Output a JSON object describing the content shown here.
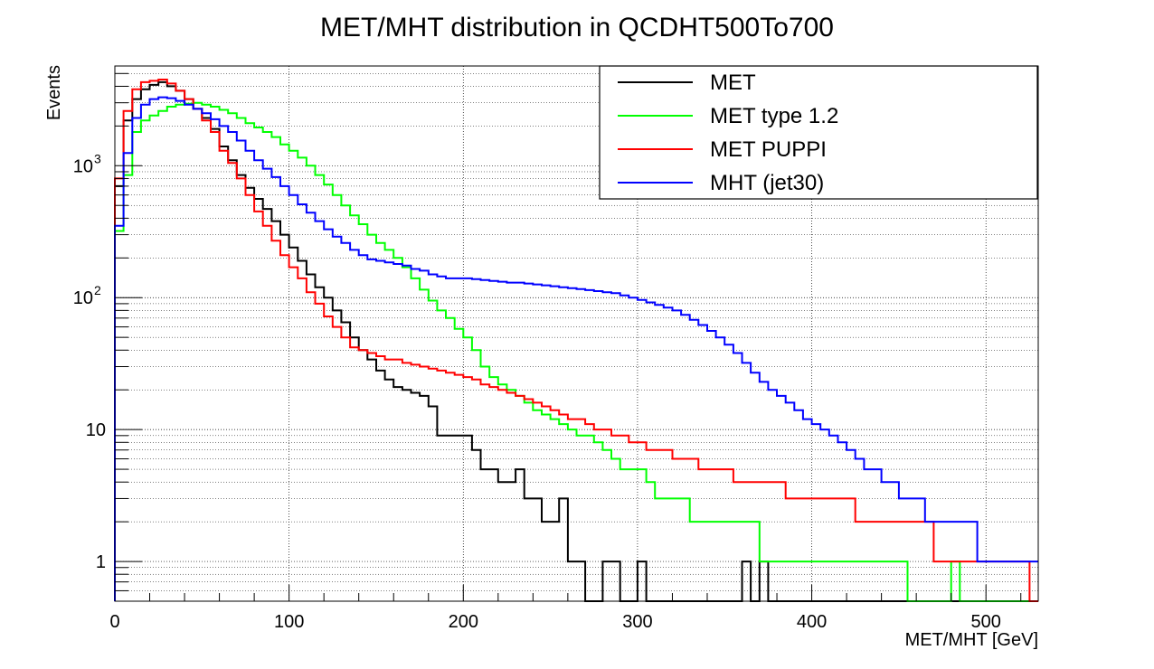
{
  "chart_data": {
    "type": "line",
    "title": "MET/MHT distribution in QCDHT500To700",
    "xlabel": "MET/MHT [GeV]",
    "ylabel": "Events",
    "x_range": [
      0,
      530
    ],
    "y_range": [
      0.5,
      5700
    ],
    "y_scale": "log",
    "grid": true,
    "legend_position": "top-right",
    "x_ticks": [
      {
        "value": 0,
        "label": "0"
      },
      {
        "value": 100,
        "label": "100"
      },
      {
        "value": 200,
        "label": "200"
      },
      {
        "value": 300,
        "label": "300"
      },
      {
        "value": 400,
        "label": "400"
      },
      {
        "value": 500,
        "label": "500"
      }
    ],
    "y_ticks": [
      {
        "value": 1,
        "base": "1",
        "exp": ""
      },
      {
        "value": 10,
        "base": "10",
        "exp": ""
      },
      {
        "value": 100,
        "base": "10",
        "exp": "2"
      },
      {
        "value": 1000,
        "base": "10",
        "exp": "3"
      }
    ],
    "bin_edges_start": 0,
    "bin_width": 5,
    "series": [
      {
        "name": "MET",
        "color": "#000000",
        "values": [
          700,
          2200,
          3200,
          3800,
          4100,
          4300,
          4000,
          3700,
          3200,
          2700,
          2300,
          1900,
          1400,
          1100,
          850,
          680,
          560,
          470,
          380,
          300,
          240,
          190,
          150,
          120,
          100,
          80,
          65,
          50,
          40,
          34,
          28,
          24,
          21,
          20,
          19,
          18,
          15,
          9,
          9,
          9,
          9,
          7,
          5,
          5,
          4,
          4,
          5,
          3,
          3,
          2,
          2,
          3,
          1,
          1,
          0,
          0,
          1,
          1,
          0,
          0,
          1,
          0,
          0,
          0,
          0,
          0,
          0,
          0,
          0,
          0,
          0,
          0,
          1,
          0,
          1,
          0,
          0,
          0,
          0,
          0,
          0,
          0,
          0,
          0,
          0,
          0,
          0,
          0,
          0,
          0,
          0,
          0,
          0,
          0,
          0,
          0,
          0,
          0,
          0,
          0,
          0,
          0,
          0,
          0,
          0,
          0
        ]
      },
      {
        "name": "MET type 1.2",
        "color": "#00ff00",
        "values": [
          320,
          850,
          1800,
          2200,
          2400,
          2600,
          2800,
          2900,
          2950,
          3000,
          2900,
          2800,
          2650,
          2500,
          2300,
          2100,
          1950,
          1800,
          1650,
          1450,
          1300,
          1150,
          1000,
          850,
          720,
          600,
          500,
          420,
          360,
          300,
          260,
          230,
          200,
          170,
          140,
          115,
          95,
          80,
          70,
          58,
          50,
          40,
          30,
          25,
          22,
          20,
          18,
          16,
          14,
          13,
          12,
          11,
          10,
          9,
          9,
          8,
          7,
          6,
          5,
          5,
          5,
          4,
          3,
          3,
          3,
          3,
          2,
          2,
          2,
          2,
          2,
          2,
          2,
          2,
          1,
          1,
          1,
          1,
          1,
          1,
          1,
          1,
          1,
          1,
          1,
          1,
          1,
          1,
          1,
          1,
          1,
          0,
          0,
          0,
          0,
          0,
          1,
          0,
          0,
          0,
          0,
          0,
          0,
          0,
          0,
          0
        ]
      },
      {
        "name": "MET PUPPI",
        "color": "#ff0000",
        "values": [
          800,
          2600,
          3800,
          4300,
          4400,
          4500,
          4200,
          3700,
          3200,
          2700,
          2200,
          1800,
          1300,
          1050,
          800,
          600,
          450,
          350,
          270,
          210,
          170,
          140,
          110,
          90,
          72,
          60,
          50,
          42,
          40,
          38,
          36,
          34,
          34,
          32,
          31,
          30,
          29,
          28,
          27,
          26,
          25,
          24,
          22,
          21,
          20,
          19,
          18,
          17,
          16,
          15,
          14,
          13,
          12,
          12,
          11,
          10,
          10,
          9,
          9,
          8,
          8,
          7,
          7,
          7,
          6,
          6,
          6,
          5,
          5,
          5,
          5,
          4,
          4,
          4,
          4,
          4,
          4,
          3,
          3,
          3,
          3,
          3,
          3,
          3,
          3,
          2,
          2,
          2,
          2,
          2,
          2,
          2,
          2,
          2,
          1,
          1,
          1,
          1,
          1,
          1,
          1,
          1,
          1,
          1,
          1,
          0
        ]
      },
      {
        "name": "MHT (jet30)",
        "color": "#0000ff",
        "values": [
          350,
          1250,
          2300,
          2900,
          3200,
          3300,
          3250,
          3100,
          2900,
          2700,
          2500,
          2250,
          2000,
          1800,
          1550,
          1300,
          1100,
          950,
          820,
          700,
          600,
          510,
          440,
          380,
          330,
          290,
          260,
          230,
          210,
          195,
          190,
          185,
          180,
          175,
          165,
          160,
          150,
          145,
          140,
          140,
          140,
          138,
          136,
          134,
          132,
          130,
          130,
          128,
          126,
          124,
          122,
          120,
          118,
          116,
          114,
          112,
          110,
          108,
          104,
          100,
          96,
          92,
          88,
          84,
          80,
          74,
          68,
          62,
          56,
          50,
          44,
          38,
          32,
          27,
          23,
          20,
          18,
          16,
          14,
          12,
          11,
          10,
          9,
          8,
          7,
          6,
          5,
          5,
          4,
          4,
          3,
          3,
          3,
          2,
          2,
          2,
          2,
          2,
          2,
          1,
          1,
          1,
          1,
          1,
          1,
          1
        ]
      }
    ]
  }
}
